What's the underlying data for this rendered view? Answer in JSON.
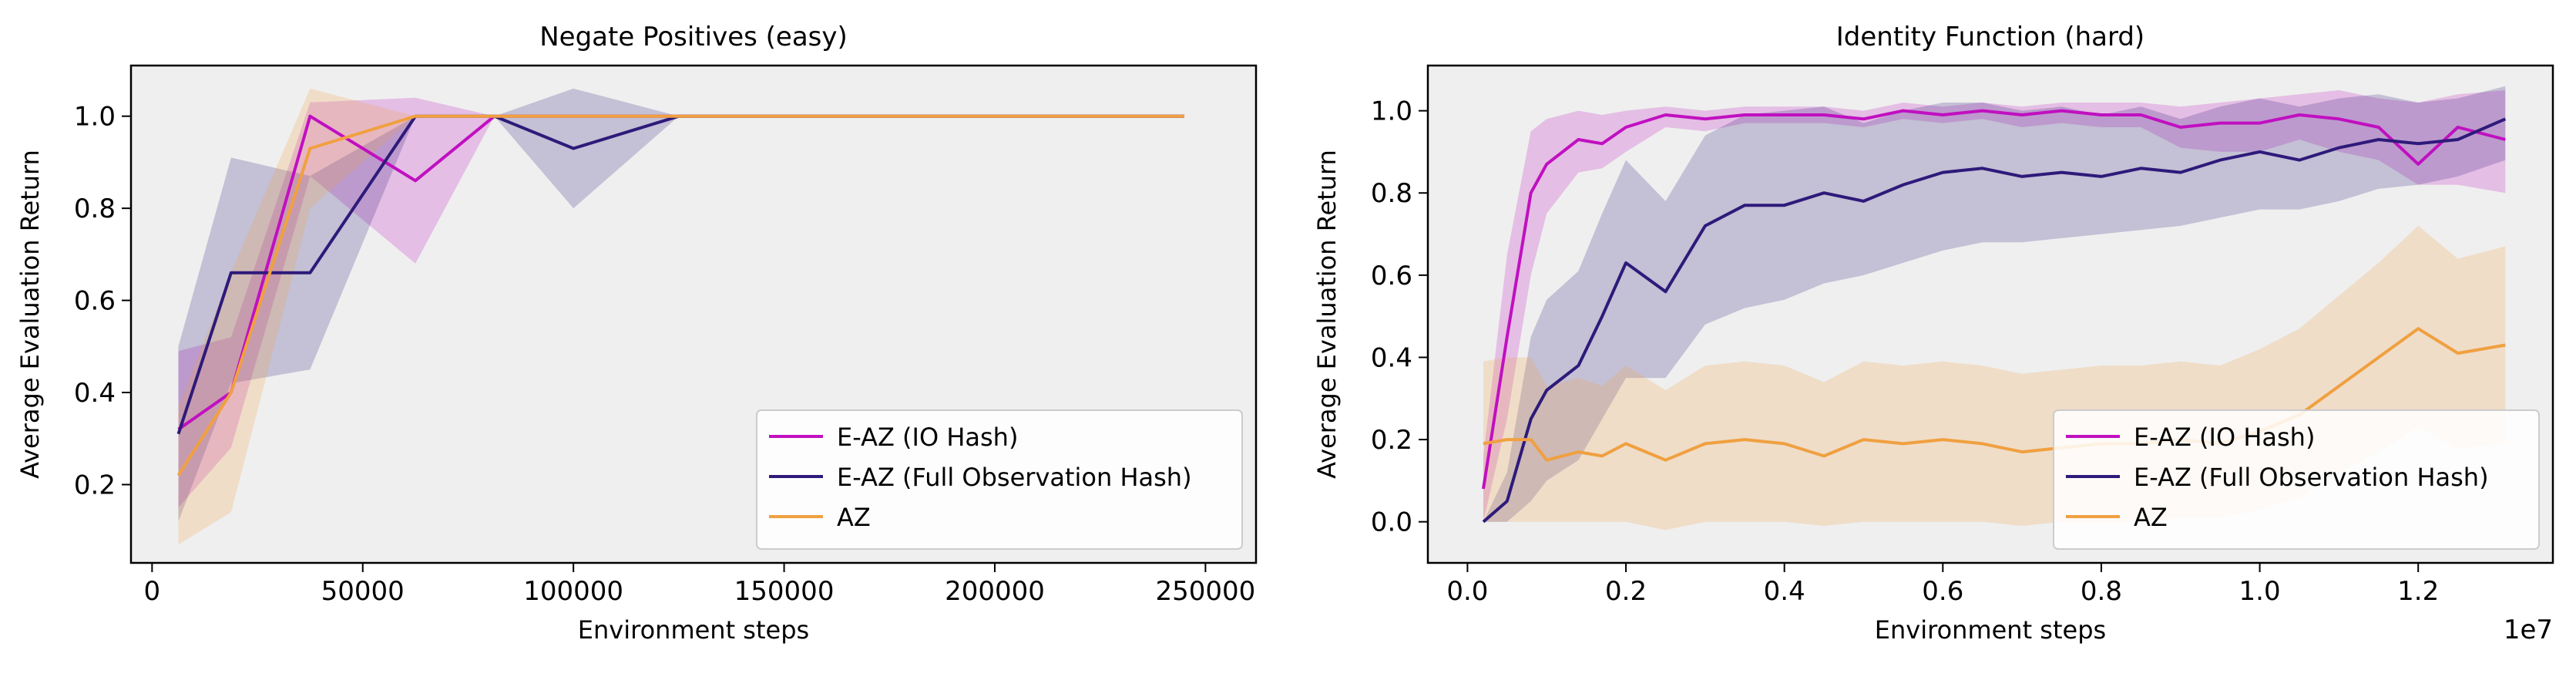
{
  "chart_data": [
    {
      "type": "line",
      "title": "Negate Positives (easy)",
      "xlabel": "Environment steps",
      "ylabel": "Average Evaluation Return",
      "xlim": [
        -5000,
        262000
      ],
      "ylim": [
        0.03,
        1.11
      ],
      "x_ticks": [
        0,
        50000,
        100000,
        150000,
        200000,
        250000
      ],
      "x_tick_labels": [
        "0",
        "50000",
        "100000",
        "150000",
        "200000",
        "250000"
      ],
      "y_ticks": [
        0.2,
        0.4,
        0.6,
        0.8,
        1.0
      ],
      "y_tick_labels": [
        "0.2",
        "0.4",
        "0.6",
        "0.8",
        "1.0"
      ],
      "x_offset_label": "",
      "grid": false,
      "legend_position": "bottom-right",
      "series": [
        {
          "name": "E-AZ (IO Hash)",
          "color": "#c010c0",
          "x": [
            6250,
            18750,
            37500,
            62500,
            81250,
            100000,
            125000,
            245000
          ],
          "y": [
            0.32,
            0.4,
            1.0,
            0.86,
            1.0,
            1.0,
            1.0,
            1.0
          ],
          "lower": [
            0.15,
            0.28,
            0.87,
            0.68,
            1.0,
            1.0,
            1.0,
            1.0
          ],
          "upper": [
            0.49,
            0.52,
            1.03,
            1.04,
            1.0,
            1.0,
            1.0,
            1.0
          ]
        },
        {
          "name": "E-AZ (Full Observation Hash)",
          "color": "#2e1a7a",
          "x": [
            6250,
            18750,
            37500,
            62500,
            81250,
            100000,
            125000,
            245000
          ],
          "y": [
            0.31,
            0.66,
            0.66,
            1.0,
            1.0,
            0.93,
            1.0,
            1.0
          ],
          "lower": [
            0.12,
            0.42,
            0.45,
            1.0,
            1.0,
            0.8,
            1.0,
            1.0
          ],
          "upper": [
            0.5,
            0.91,
            0.87,
            1.0,
            1.0,
            1.06,
            1.0,
            1.0
          ]
        },
        {
          "name": "AZ",
          "color": "#f0a040",
          "x": [
            6250,
            18750,
            37500,
            62500,
            81250,
            100000,
            125000,
            245000
          ],
          "y": [
            0.22,
            0.4,
            0.93,
            1.0,
            1.0,
            1.0,
            1.0,
            1.0
          ],
          "lower": [
            0.07,
            0.14,
            0.8,
            1.0,
            1.0,
            1.0,
            1.0,
            1.0
          ],
          "upper": [
            0.37,
            0.66,
            1.06,
            1.0,
            1.0,
            1.0,
            1.0,
            1.0
          ]
        }
      ]
    },
    {
      "type": "line",
      "title": "Identity Function (hard)",
      "xlabel": "Environment steps",
      "ylabel": "Average Evaluation Return",
      "xlim": [
        -0.05,
        1.37
      ],
      "ylim": [
        -0.1,
        1.11
      ],
      "x_ticks": [
        0.0,
        0.2,
        0.4,
        0.6,
        0.8,
        1.0,
        1.2
      ],
      "x_tick_labels": [
        "0.0",
        "0.2",
        "0.4",
        "0.6",
        "0.8",
        "1.0",
        "1.2"
      ],
      "y_ticks": [
        0.0,
        0.2,
        0.4,
        0.6,
        0.8,
        1.0
      ],
      "y_tick_labels": [
        "0.0",
        "0.2",
        "0.4",
        "0.6",
        "0.8",
        "1.0"
      ],
      "x_offset_label": "1e7",
      "grid": false,
      "legend_position": "bottom-right",
      "series": [
        {
          "name": "E-AZ (IO Hash)",
          "color": "#c010c0",
          "x": [
            0.02,
            0.05,
            0.08,
            0.1,
            0.14,
            0.17,
            0.2,
            0.25,
            0.3,
            0.35,
            0.4,
            0.45,
            0.5,
            0.55,
            0.6,
            0.65,
            0.7,
            0.75,
            0.8,
            0.85,
            0.9,
            0.95,
            1.0,
            1.05,
            1.1,
            1.15,
            1.2,
            1.25,
            1.31
          ],
          "y": [
            0.08,
            0.45,
            0.8,
            0.87,
            0.93,
            0.92,
            0.96,
            0.99,
            0.98,
            0.99,
            0.99,
            0.99,
            0.98,
            1.0,
            0.99,
            1.0,
            0.99,
            1.0,
            0.99,
            0.99,
            0.96,
            0.97,
            0.97,
            0.99,
            0.98,
            0.96,
            0.87,
            0.96,
            0.93
          ],
          "lower": [
            0.0,
            0.25,
            0.6,
            0.75,
            0.85,
            0.86,
            0.9,
            0.96,
            0.95,
            0.97,
            0.97,
            0.97,
            0.96,
            0.98,
            0.97,
            0.98,
            0.96,
            0.97,
            0.96,
            0.96,
            0.91,
            0.9,
            0.9,
            0.93,
            0.9,
            0.88,
            0.82,
            0.82,
            0.8
          ],
          "upper": [
            0.16,
            0.65,
            0.95,
            0.98,
            1.0,
            0.99,
            1.0,
            1.01,
            1.0,
            1.01,
            1.01,
            1.01,
            1.0,
            1.02,
            1.01,
            1.02,
            1.01,
            1.02,
            1.02,
            1.02,
            1.01,
            1.02,
            1.03,
            1.04,
            1.05,
            1.03,
            1.02,
            1.04,
            1.05
          ]
        },
        {
          "name": "E-AZ (Full Observation Hash)",
          "color": "#2e1a7a",
          "x": [
            0.02,
            0.05,
            0.08,
            0.1,
            0.14,
            0.17,
            0.2,
            0.25,
            0.3,
            0.35,
            0.4,
            0.45,
            0.5,
            0.55,
            0.6,
            0.65,
            0.7,
            0.75,
            0.8,
            0.85,
            0.9,
            0.95,
            1.0,
            1.05,
            1.1,
            1.15,
            1.2,
            1.25,
            1.31
          ],
          "y": [
            0.0,
            0.05,
            0.25,
            0.32,
            0.38,
            0.5,
            0.63,
            0.56,
            0.72,
            0.77,
            0.77,
            0.8,
            0.78,
            0.82,
            0.85,
            0.86,
            0.84,
            0.85,
            0.84,
            0.86,
            0.85,
            0.88,
            0.9,
            0.88,
            0.91,
            0.93,
            0.92,
            0.93,
            0.98
          ],
          "lower": [
            0.0,
            0.0,
            0.05,
            0.1,
            0.15,
            0.25,
            0.35,
            0.35,
            0.48,
            0.52,
            0.54,
            0.58,
            0.6,
            0.63,
            0.66,
            0.68,
            0.68,
            0.69,
            0.7,
            0.71,
            0.72,
            0.74,
            0.76,
            0.76,
            0.78,
            0.81,
            0.82,
            0.84,
            0.88
          ],
          "upper": [
            0.0,
            0.12,
            0.45,
            0.54,
            0.61,
            0.75,
            0.88,
            0.78,
            0.94,
            0.99,
            1.0,
            1.01,
            0.97,
            1.0,
            1.02,
            1.02,
            1.0,
            1.01,
            0.99,
            1.01,
            0.98,
            1.01,
            1.03,
            1.01,
            1.03,
            1.04,
            1.02,
            1.03,
            1.06
          ]
        },
        {
          "name": "AZ",
          "color": "#f0a040",
          "x": [
            0.02,
            0.05,
            0.08,
            0.1,
            0.14,
            0.17,
            0.2,
            0.25,
            0.3,
            0.35,
            0.4,
            0.45,
            0.5,
            0.55,
            0.6,
            0.65,
            0.7,
            0.75,
            0.8,
            0.85,
            0.9,
            0.95,
            1.0,
            1.05,
            1.1,
            1.15,
            1.2,
            1.25,
            1.31
          ],
          "y": [
            0.19,
            0.2,
            0.2,
            0.15,
            0.17,
            0.16,
            0.19,
            0.15,
            0.19,
            0.2,
            0.19,
            0.16,
            0.2,
            0.19,
            0.2,
            0.19,
            0.17,
            0.18,
            0.19,
            0.19,
            0.2,
            0.19,
            0.22,
            0.26,
            0.33,
            0.4,
            0.47,
            0.41,
            0.43
          ],
          "lower": [
            0.0,
            0.0,
            0.0,
            0.0,
            0.0,
            0.0,
            0.0,
            -0.02,
            0.0,
            0.0,
            0.0,
            -0.01,
            0.0,
            0.0,
            0.0,
            0.0,
            -0.01,
            0.0,
            0.0,
            0.0,
            0.01,
            0.01,
            0.03,
            0.06,
            0.12,
            0.17,
            0.23,
            0.18,
            0.19
          ],
          "upper": [
            0.39,
            0.4,
            0.4,
            0.33,
            0.35,
            0.33,
            0.38,
            0.32,
            0.38,
            0.39,
            0.38,
            0.34,
            0.39,
            0.38,
            0.39,
            0.38,
            0.36,
            0.37,
            0.38,
            0.38,
            0.39,
            0.38,
            0.42,
            0.47,
            0.55,
            0.63,
            0.72,
            0.64,
            0.67
          ]
        }
      ]
    }
  ]
}
